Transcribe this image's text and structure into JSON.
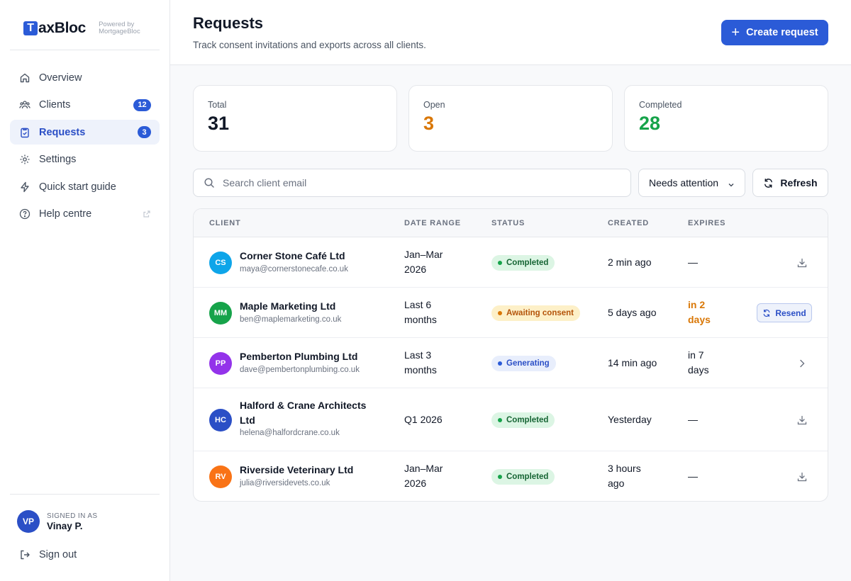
{
  "brand": {
    "logo_letter": "T",
    "logo_rest": "axBloc",
    "powered_line1": "Powered by",
    "powered_line2": "MortgageBloc"
  },
  "sidebar": {
    "items": [
      {
        "label": "Overview",
        "icon": "home-icon"
      },
      {
        "label": "Clients",
        "icon": "users-icon",
        "badge": "12"
      },
      {
        "label": "Requests",
        "icon": "clipboard-check-icon",
        "badge": "3",
        "active": true
      },
      {
        "label": "Settings",
        "icon": "gear-icon"
      },
      {
        "label": "Quick start guide",
        "icon": "lightning-icon"
      },
      {
        "label": "Help centre",
        "icon": "help-circle-icon",
        "external": true
      }
    ],
    "user": {
      "initials": "VP",
      "caption": "SIGNED IN AS",
      "name": "Vinay P."
    },
    "signout_label": "Sign out"
  },
  "header": {
    "title": "Requests",
    "subtitle": "Track consent invitations and exports across all clients.",
    "create_label": "Create request"
  },
  "stats": {
    "total": {
      "label": "Total",
      "value": "31"
    },
    "open": {
      "label": "Open",
      "value": "3"
    },
    "completed": {
      "label": "Completed",
      "value": "28"
    }
  },
  "toolbar": {
    "search_placeholder": "Search client email",
    "filter_value": "Needs attention",
    "refresh_label": "Refresh"
  },
  "table": {
    "columns": [
      "CLIENT",
      "DATE RANGE",
      "STATUS",
      "CREATED",
      "EXPIRES"
    ],
    "rows": [
      {
        "initials": "CS",
        "avatar_color": "#0ea5e9",
        "name": "Corner Stone Café Ltd",
        "email": "maya@cornerstonecafe.co.uk",
        "range_1": "Jan–Mar",
        "range_2": "2026",
        "status": "Completed",
        "created_1": "2 min ago",
        "created_2": "",
        "expires_1": "—",
        "expires_2": "",
        "action": "download-icon"
      },
      {
        "initials": "MM",
        "avatar_color": "#16a34a",
        "name": "Maple Marketing Ltd",
        "email": "ben@maplemarketing.co.uk",
        "range_1": "Last 6",
        "range_2": "months",
        "status": "Awaiting consent",
        "created_1": "5 days ago",
        "created_2": "",
        "expires_1": "in 2",
        "expires_2": "days",
        "action": "Resend"
      },
      {
        "initials": "PP",
        "avatar_color": "#9333ea",
        "name": "Pemberton Plumbing Ltd",
        "email": "dave@pembertonplumbing.co.uk",
        "range_1": "Last 3",
        "range_2": "months",
        "status": "Generating",
        "created_1": "14 min ago",
        "created_2": "",
        "expires_1": "in 7",
        "expires_2": "days",
        "action": "chevron-right-icon"
      },
      {
        "initials": "HC",
        "avatar_color": "#2b4fc6",
        "name_1": "Halford & Crane Architects",
        "name_2": "Ltd",
        "email": "helena@halfordcrane.co.uk",
        "range_1": "Q1 2026",
        "range_2": "",
        "status": "Completed",
        "created_1": "Yesterday",
        "created_2": "",
        "expires_1": "—",
        "expires_2": "",
        "action": "download-icon"
      },
      {
        "initials": "RV",
        "avatar_color": "#f97316",
        "name": "Riverside Veterinary Ltd",
        "email": "julia@riversidevets.co.uk",
        "range_1": "Jan–Mar",
        "range_2": "2026",
        "status": "Completed",
        "created_1": "3 hours",
        "created_2": "ago",
        "expires_1": "—",
        "expires_2": "",
        "action": "download-icon"
      }
    ]
  },
  "colors": {
    "accent": "#2b5bd7",
    "open": "#d97706",
    "completed": "#16a34a"
  }
}
